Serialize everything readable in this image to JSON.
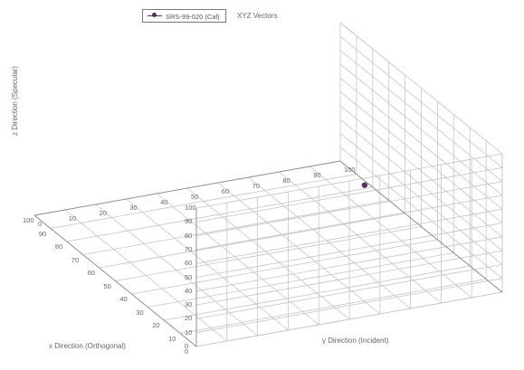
{
  "chart_data": {
    "type": "scatter",
    "title": "XYZ Vectors",
    "xlabel": "x Direction (Orthogonal)",
    "ylabel": "y Direction (Incident)",
    "zlabel": "z Direction (Specular)",
    "xlim": [
      0,
      100
    ],
    "ylim": [
      0,
      100
    ],
    "zlim": [
      0,
      100
    ],
    "x_ticks": [
      "0",
      "10",
      "20",
      "30",
      "40",
      "50",
      "60",
      "70",
      "80",
      "90",
      "100"
    ],
    "y_ticks": [
      "0",
      "10",
      "20",
      "30",
      "40",
      "50",
      "60",
      "70",
      "80",
      "90",
      "100"
    ],
    "z_ticks": [
      "0",
      "10",
      "20",
      "30",
      "40",
      "50",
      "60",
      "70",
      "80",
      "90",
      "100"
    ],
    "grid": true,
    "legend_position": "top",
    "series": [
      {
        "name": "SRS-99-020 (Cal)",
        "color": "#5a2a6a",
        "points": [
          {
            "x": 0,
            "y": 55,
            "z": 95
          }
        ]
      }
    ]
  }
}
